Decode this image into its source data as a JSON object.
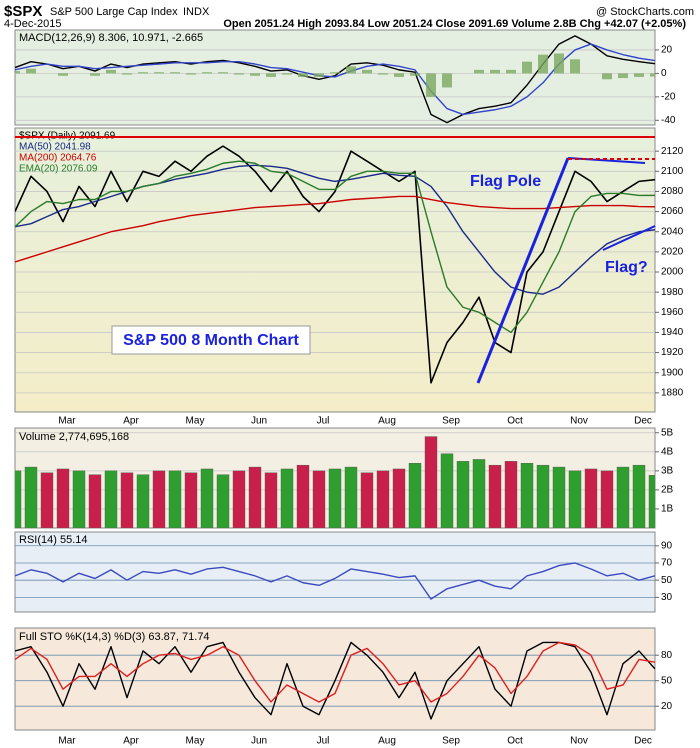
{
  "header": {
    "symbol": "$SPX",
    "name": "S&P 500 Large Cap Index",
    "exchange": "INDX",
    "date": "4-Dec-2015",
    "quote": "Open 2051.24 High 2093.84 Low 2051.24 Close 2091.69 Volume 2.8B Chg +42.07 (+2.05%)",
    "source": "@ StockCharts.com"
  },
  "chart_data": [
    {
      "type": "line",
      "title": "MACD(12,26,9) 8.306, 10.971, -2.665",
      "ylim": [
        -44,
        37
      ],
      "yticks": [
        20,
        0,
        -20,
        -40
      ],
      "grid": true,
      "series": [
        {
          "color": "#000000",
          "values": [
            5,
            10,
            8,
            4,
            6,
            2,
            8,
            5,
            8,
            9,
            10,
            8,
            10,
            11,
            9,
            6,
            2,
            3,
            -2,
            -5,
            -2,
            8,
            9,
            7,
            3,
            1,
            -35,
            -42,
            -35,
            -30,
            -28,
            -25,
            -10,
            8,
            25,
            32,
            25,
            15,
            12,
            10,
            8.306
          ]
        },
        {
          "color": "#3344cc",
          "values": [
            3,
            6,
            8,
            6,
            6,
            4,
            5,
            6,
            7,
            8,
            9,
            9,
            9,
            10,
            10,
            8,
            5,
            4,
            1,
            -2,
            -3,
            2,
            6,
            8,
            6,
            3,
            -15,
            -30,
            -35,
            -33,
            -31,
            -28,
            -20,
            -8,
            8,
            20,
            25,
            20,
            16,
            13,
            10.971
          ]
        },
        {
          "color": "#7aa860",
          "style": "bar",
          "values": [
            2,
            4,
            0,
            -2,
            0,
            -2,
            3,
            -1,
            1,
            1,
            1,
            -1,
            1,
            1,
            -1,
            -2,
            -3,
            -1,
            -3,
            -3,
            1,
            6,
            3,
            -1,
            -3,
            -2,
            -20,
            -12,
            0,
            3,
            3,
            3,
            10,
            16,
            17,
            12,
            0,
            -5,
            -4,
            -3,
            -2.665
          ]
        }
      ]
    },
    {
      "type": "line",
      "ylim": [
        1861,
        2143
      ],
      "yticks": [
        1880,
        1900,
        1920,
        1940,
        1960,
        1980,
        2000,
        2020,
        2040,
        2060,
        2080,
        2100,
        2120
      ],
      "grid": true,
      "categories": [
        null,
        null,
        null,
        "Mar",
        null,
        null,
        null,
        "Apr",
        null,
        null,
        null,
        "May",
        null,
        null,
        null,
        "Jun",
        null,
        null,
        null,
        "Jul",
        null,
        null,
        null,
        "Aug",
        null,
        null,
        null,
        "Sep",
        null,
        null,
        null,
        "Oct",
        null,
        null,
        null,
        "Nov",
        null,
        null,
        null,
        "Dec",
        null
      ],
      "annotations": [
        "Flag Pole",
        "Flag?",
        "S&P 500 8 Month Chart"
      ],
      "series": [
        {
          "name": "$SPX (Daily) 2091.69",
          "color": "#000000",
          "values": [
            2060,
            2095,
            2080,
            2050,
            2085,
            2065,
            2100,
            2070,
            2100,
            2095,
            2110,
            2100,
            2115,
            2125,
            2115,
            2100,
            2080,
            2100,
            2075,
            2060,
            2080,
            2120,
            2110,
            2100,
            2090,
            2100,
            1890,
            1930,
            1950,
            1975,
            1930,
            1920,
            2000,
            2020,
            2060,
            2100,
            2090,
            2070,
            2080,
            2090,
            2091.69
          ]
        },
        {
          "name": "MA(50) 2041.98",
          "color": "#1a2a8a",
          "values": [
            2045,
            2048,
            2055,
            2062,
            2065,
            2070,
            2075,
            2080,
            2085,
            2088,
            2092,
            2095,
            2098,
            2102,
            2105,
            2106,
            2105,
            2103,
            2098,
            2093,
            2090,
            2092,
            2095,
            2098,
            2096,
            2095,
            2085,
            2065,
            2040,
            2020,
            2000,
            1985,
            1980,
            1978,
            1985,
            2000,
            2015,
            2028,
            2035,
            2040,
            2041.98
          ]
        },
        {
          "name": "MA(200) 2064.76",
          "color": "#cc0000",
          "values": [
            2010,
            2015,
            2020,
            2025,
            2030,
            2035,
            2040,
            2043,
            2046,
            2050,
            2053,
            2056,
            2058,
            2060,
            2062,
            2064,
            2065,
            2066,
            2067,
            2068,
            2070,
            2072,
            2073,
            2074,
            2075,
            2075,
            2072,
            2069,
            2067,
            2065,
            2064,
            2063,
            2063,
            2063,
            2064,
            2065,
            2066,
            2066,
            2066,
            2065,
            2064.76
          ]
        },
        {
          "name": "EMA(20) 2076.09",
          "color": "#2a7a2a",
          "values": [
            2045,
            2060,
            2070,
            2068,
            2072,
            2072,
            2080,
            2080,
            2085,
            2088,
            2095,
            2098,
            2102,
            2108,
            2110,
            2108,
            2100,
            2098,
            2090,
            2082,
            2082,
            2095,
            2100,
            2100,
            2098,
            2098,
            2040,
            1985,
            1965,
            1960,
            1950,
            1940,
            1960,
            1990,
            2020,
            2060,
            2075,
            2078,
            2078,
            2076,
            2076.09
          ]
        }
      ]
    },
    {
      "type": "bar",
      "title": "Volume 2,774,695,168",
      "ylim": [
        0,
        5.25
      ],
      "grid": true,
      "up_color": "#2e9e2e",
      "down_color": "#c8204a",
      "yticks": [
        {
          "value": 1,
          "label": "1B"
        },
        {
          "value": 2,
          "label": "2B"
        },
        {
          "value": 3,
          "label": "3B"
        },
        {
          "value": 4,
          "label": "4B"
        },
        {
          "value": 5,
          "label": "5B"
        }
      ],
      "values": [
        3.0,
        3.2,
        2.9,
        3.1,
        3.0,
        2.8,
        3.0,
        2.9,
        2.8,
        3.0,
        3.0,
        2.9,
        3.1,
        2.8,
        3.0,
        3.2,
        2.9,
        3.1,
        3.3,
        3.0,
        3.1,
        3.2,
        2.9,
        3.0,
        3.1,
        3.4,
        4.8,
        3.9,
        3.5,
        3.6,
        3.3,
        3.5,
        3.4,
        3.3,
        3.2,
        3.0,
        3.1,
        3.0,
        3.2,
        3.3,
        2.77
      ]
    },
    {
      "type": "line",
      "title": "RSI(14) 55.14",
      "ylim": [
        13,
        106
      ],
      "yticks": [
        30,
        50,
        70,
        90
      ],
      "grid": true,
      "series": [
        {
          "color": "#3a4abf",
          "values": [
            55,
            62,
            58,
            48,
            58,
            52,
            62,
            50,
            60,
            58,
            62,
            57,
            63,
            65,
            60,
            55,
            48,
            55,
            47,
            44,
            52,
            63,
            60,
            57,
            53,
            55,
            28,
            40,
            45,
            50,
            43,
            40,
            55,
            60,
            67,
            70,
            63,
            55,
            58,
            50,
            55.14
          ]
        }
      ]
    },
    {
      "type": "line",
      "title": "Full STO %K(14,3) %D(3) 63.87, 71.74",
      "ylim": [
        -8,
        112
      ],
      "yticks": [
        20,
        50,
        80
      ],
      "grid": true,
      "series": [
        {
          "color": "#000000",
          "values": [
            85,
            90,
            60,
            20,
            70,
            40,
            90,
            30,
            85,
            70,
            90,
            60,
            90,
            95,
            60,
            30,
            10,
            70,
            20,
            10,
            50,
            95,
            80,
            60,
            30,
            60,
            5,
            50,
            70,
            90,
            40,
            20,
            85,
            95,
            95,
            90,
            60,
            10,
            70,
            85,
            63.87
          ]
        },
        {
          "color": "#dd2020",
          "values": [
            75,
            88,
            75,
            40,
            55,
            55,
            70,
            55,
            70,
            80,
            82,
            75,
            80,
            90,
            80,
            50,
            25,
            45,
            35,
            25,
            35,
            80,
            88,
            70,
            45,
            50,
            25,
            35,
            55,
            80,
            65,
            35,
            55,
            85,
            95,
            92,
            80,
            40,
            45,
            75,
            71.74
          ]
        }
      ]
    }
  ]
}
